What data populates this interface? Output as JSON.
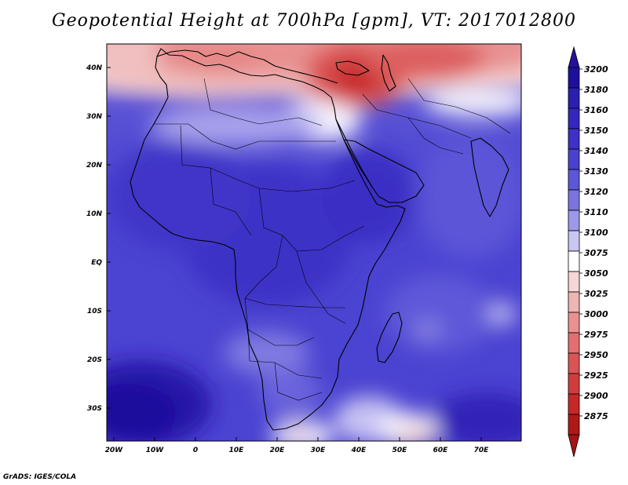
{
  "title": "Geopotential Height at 700hPa [gpm], VT: 2017012800",
  "credit": "GrADS: IGES/COLA",
  "map": {
    "lat_labels": [
      "40N",
      "30N",
      "20N",
      "10N",
      "EQ",
      "10S",
      "20S",
      "30S"
    ],
    "lon_labels": [
      "20W",
      "10W",
      "0",
      "10E",
      "20E",
      "30E",
      "40E",
      "50E",
      "60E",
      "70E"
    ]
  },
  "colorbar": {
    "levels": [
      "3200",
      "3180",
      "3160",
      "3150",
      "3140",
      "3130",
      "3120",
      "3110",
      "3100",
      "3075",
      "3050",
      "3025",
      "3000",
      "2975",
      "2950",
      "2925",
      "2900",
      "2875"
    ],
    "colors": [
      "#1e0f9c",
      "#2a1fae",
      "#3427be",
      "#3d31c8",
      "#4a41d0",
      "#5c56d8",
      "#7a74e0",
      "#9d98e8",
      "#c9c6f3",
      "#ffffff",
      "#f6d6d6",
      "#efb4b4",
      "#e99191",
      "#e27070",
      "#da5454",
      "#d13d3d",
      "#c62727",
      "#b01818"
    ],
    "end_colors": {
      "top": "#24109a",
      "bottom": "#a51414"
    }
  }
}
